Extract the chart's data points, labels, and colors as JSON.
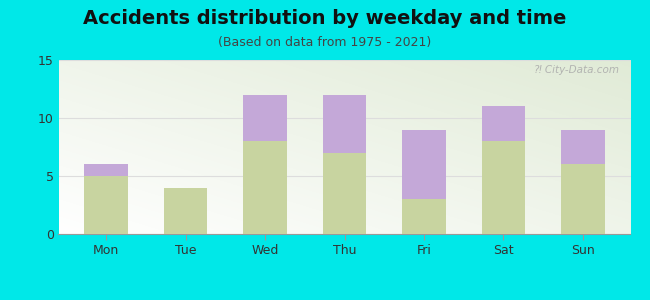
{
  "title": "Accidents distribution by weekday and time",
  "subtitle": "(Based on data from 1975 - 2021)",
  "categories": [
    "Mon",
    "Tue",
    "Wed",
    "Thu",
    "Fri",
    "Sat",
    "Sun"
  ],
  "pm_values": [
    5,
    4,
    8,
    7,
    3,
    8,
    6
  ],
  "am_values": [
    1,
    0,
    4,
    5,
    6,
    3,
    3
  ],
  "am_color": "#c4a8d8",
  "pm_color": "#c8d4a0",
  "background_color": "#00e8e8",
  "ylim": [
    0,
    15
  ],
  "yticks": [
    0,
    5,
    10,
    15
  ],
  "bar_width": 0.55,
  "title_fontsize": 14,
  "subtitle_fontsize": 9,
  "tick_fontsize": 9,
  "legend_fontsize": 9,
  "watermark_text": "⁈ City-Data.com"
}
